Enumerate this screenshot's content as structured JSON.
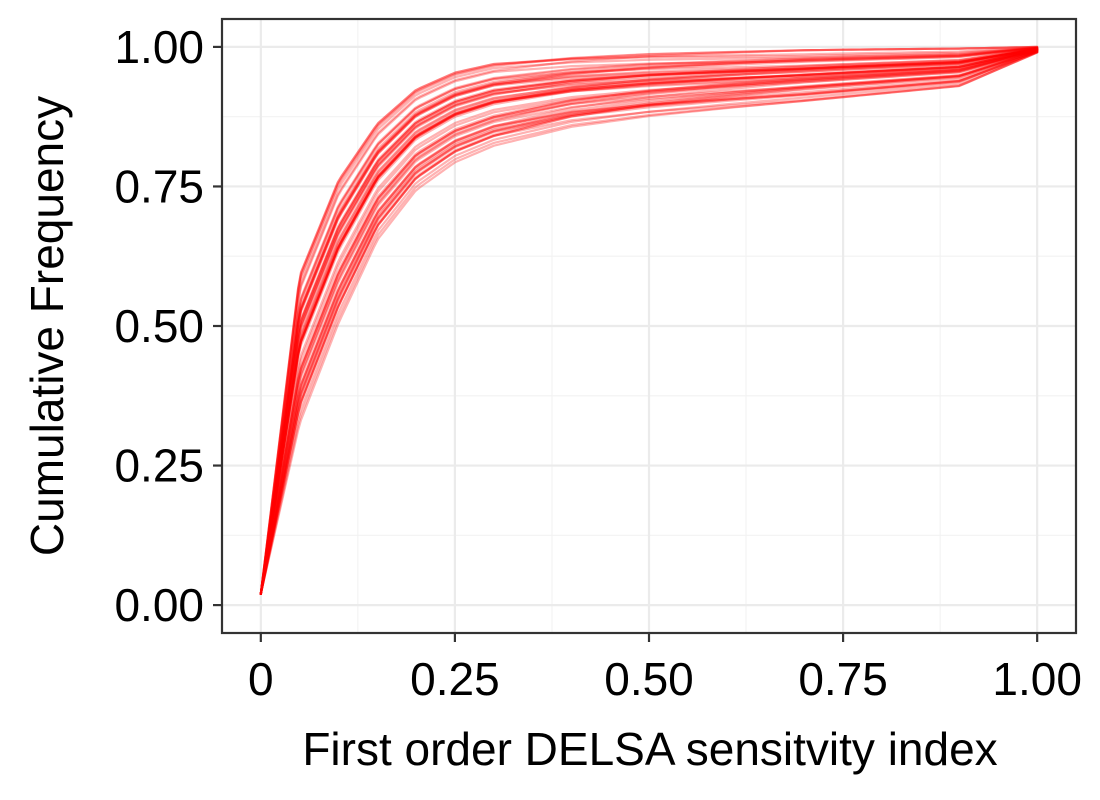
{
  "chart_data": {
    "type": "line",
    "title": "",
    "xlabel": "First order DELSA sensitvity index",
    "ylabel": "Cumulative Frequency",
    "xlim": [
      -0.05,
      1.05
    ],
    "ylim": [
      -0.05,
      1.05
    ],
    "x_ticks": [
      {
        "value": 0,
        "label": "0"
      },
      {
        "value": 0.25,
        "label": "0.25"
      },
      {
        "value": 0.5,
        "label": "0.50"
      },
      {
        "value": 0.75,
        "label": "0.75"
      },
      {
        "value": 1.0,
        "label": "1.00"
      }
    ],
    "y_ticks": [
      {
        "value": 0,
        "label": "0.00"
      },
      {
        "value": 0.25,
        "label": "0.25"
      },
      {
        "value": 0.5,
        "label": "0.50"
      },
      {
        "value": 0.75,
        "label": "0.75"
      },
      {
        "value": 1.0,
        "label": "1.00"
      }
    ],
    "grid": true,
    "legend": "none",
    "line_color": "#ff0000",
    "line_alpha": 0.3,
    "description_of_series": "Many overlapping empirical cumulative distribution curves of the first-order DELSA sensitivity index; each rises steeply from near 0 and approaches 1.00 at index 1.00.",
    "envelope": {
      "x": [
        0,
        0.05,
        0.1,
        0.15,
        0.2,
        0.25,
        0.3,
        0.4,
        0.5,
        0.6,
        0.75,
        0.9,
        1.0
      ],
      "upper": [
        0.02,
        0.6,
        0.77,
        0.87,
        0.93,
        0.96,
        0.975,
        0.985,
        0.99,
        0.992,
        0.995,
        0.997,
        1.0
      ],
      "lower": [
        0.02,
        0.32,
        0.5,
        0.65,
        0.74,
        0.79,
        0.82,
        0.855,
        0.875,
        0.89,
        0.91,
        0.93,
        0.99
      ]
    }
  }
}
